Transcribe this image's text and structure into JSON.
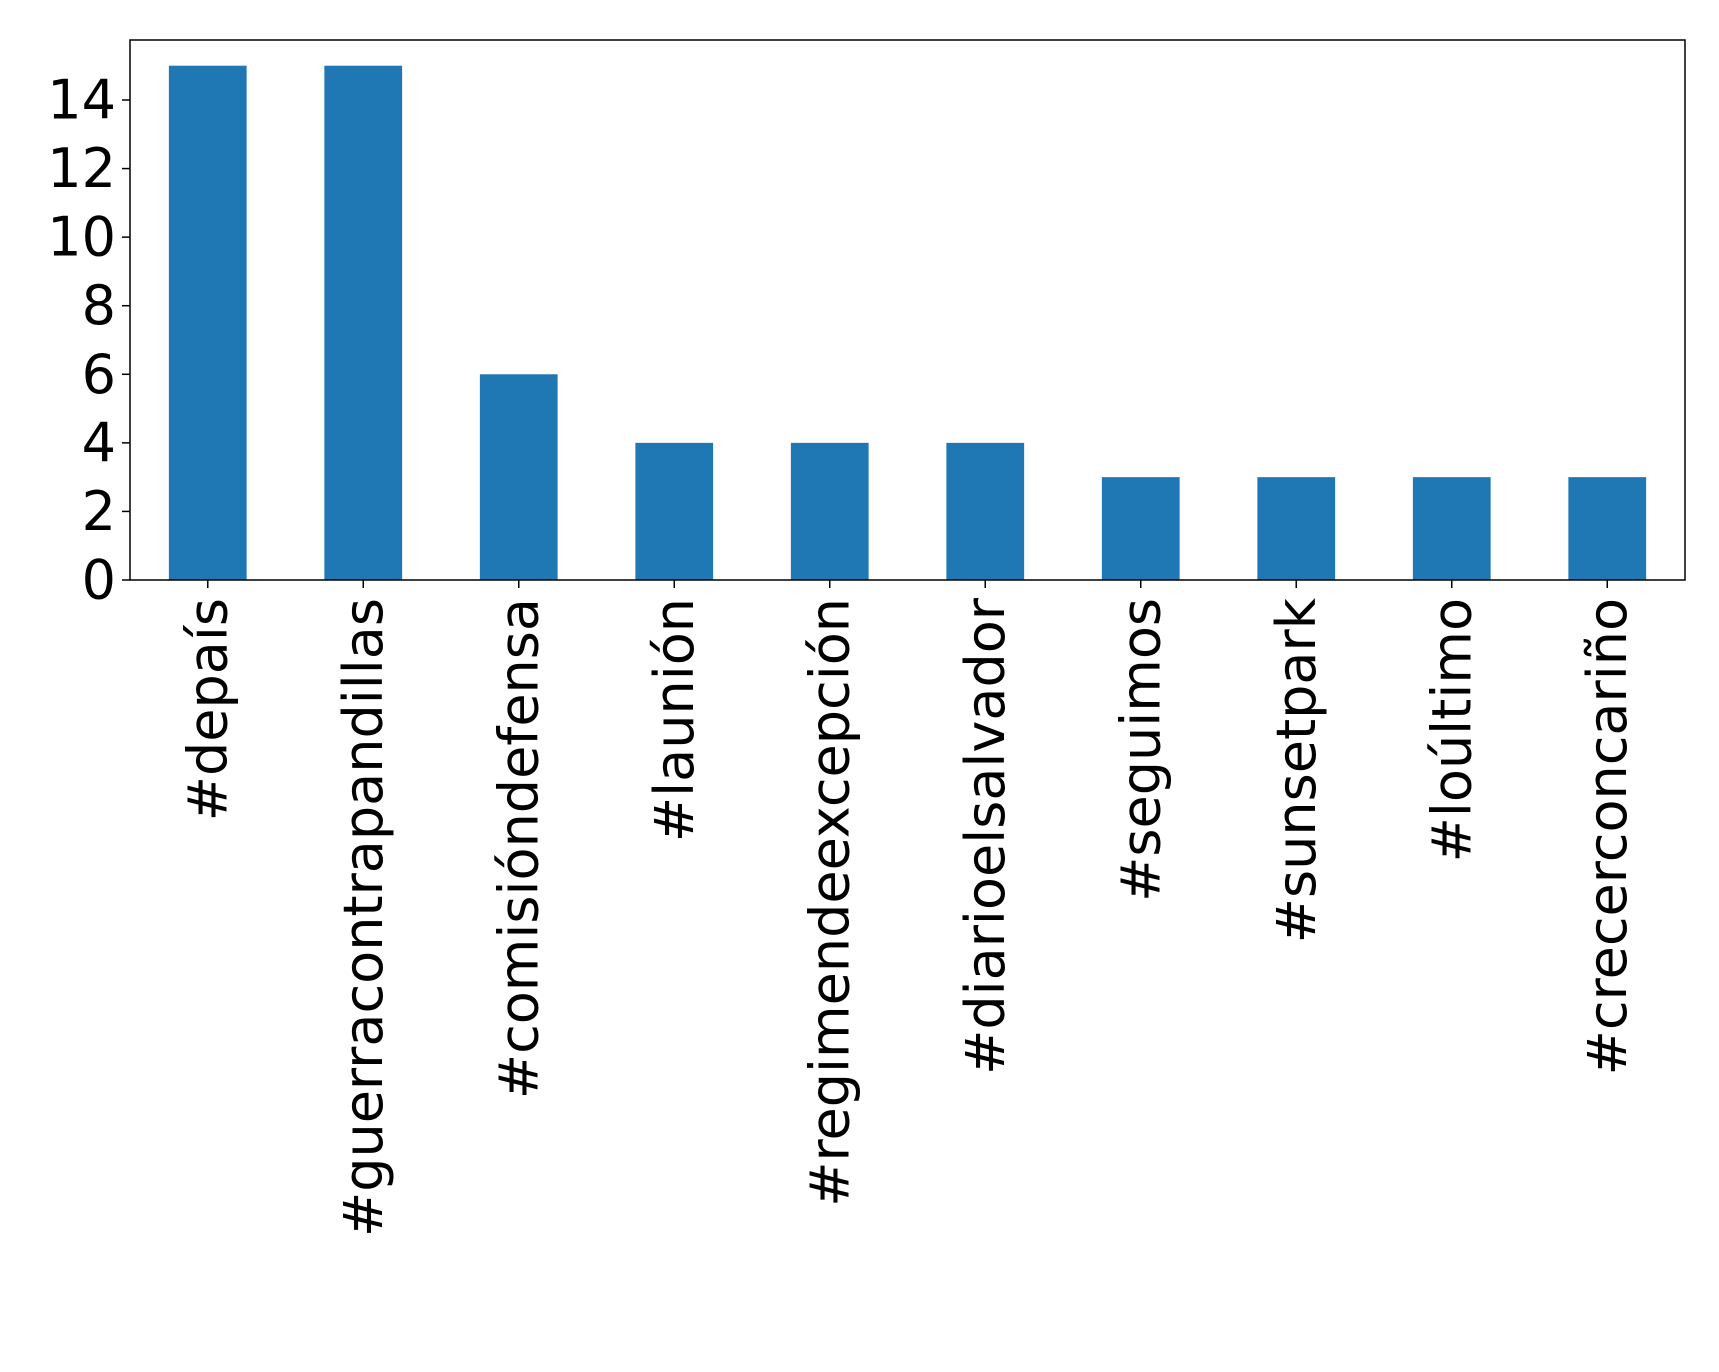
{
  "chart_data": {
    "type": "bar",
    "title": "",
    "xlabel": "",
    "ylabel": "",
    "categories": [
      "#depaís",
      "#guerracontrapandillas",
      "#comisióndefensa",
      "#launión",
      "#regimendeexcepción",
      "#diarioelsalvador",
      "#seguimos",
      "#sunsetpark",
      "#loúltimo",
      "#crecerconcariño"
    ],
    "values": [
      15,
      15,
      6,
      4,
      4,
      4,
      3,
      3,
      3,
      3
    ],
    "ylim": [
      0,
      15.75
    ],
    "yticks": [
      0,
      2,
      4,
      6,
      8,
      10,
      12,
      14
    ],
    "grid": false,
    "legend": "none",
    "bar_color": "#1f77b4"
  }
}
